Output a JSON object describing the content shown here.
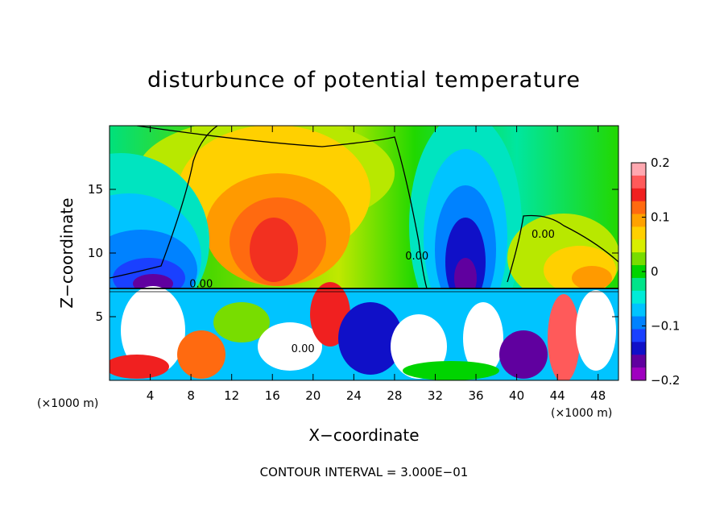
{
  "chart_data": {
    "type": "heatmap",
    "title": "disturbunce of potential temperature",
    "xlabel": "X−coordinate",
    "ylabel": "Z−coordinate",
    "x_unit_left": "(×1000 m)",
    "x_unit_right": "(×1000 m)",
    "xlim": [
      0,
      50
    ],
    "ylim": [
      0,
      20
    ],
    "x_ticks": [
      4,
      8,
      12,
      16,
      20,
      24,
      28,
      32,
      36,
      40,
      44,
      48
    ],
    "x_tick_labels": [
      "4",
      "8",
      "12",
      "16",
      "20",
      "24",
      "28",
      "32",
      "36",
      "40",
      "44",
      "48"
    ],
    "y_ticks": [
      5,
      10,
      15
    ],
    "y_tick_labels": [
      "5",
      "10",
      "15"
    ],
    "colorbar": {
      "range": [
        -0.2,
        0.2
      ],
      "ticks": [
        0.2,
        0.1,
        0,
        -0.1,
        -0.2
      ],
      "tick_labels": [
        "0.2",
        "0.1",
        "0",
        "−0.1",
        "−0.2"
      ],
      "colors": [
        "#ffa8b0",
        "#ff5a5a",
        "#f02020",
        "#ff6a10",
        "#ffa200",
        "#ffd000",
        "#d8ef00",
        "#78dd00",
        "#00d400",
        "#00e48a",
        "#00ecd8",
        "#00c4ff",
        "#0082ff",
        "#1a40ff",
        "#1010c8",
        "#60009f",
        "#9f00bf"
      ]
    },
    "contour_labels": [
      {
        "text": "0.00",
        "x": 42.6,
        "y": 11.2
      },
      {
        "text": "0.00",
        "x": 30.2,
        "y": 9.5
      },
      {
        "text": "0.00",
        "x": 9.0,
        "y": 7.3
      },
      {
        "text": "0.00",
        "x": 19.0,
        "y": 2.2
      }
    ],
    "footer": "CONTOUR INTERVAL = 3.000E−01"
  }
}
